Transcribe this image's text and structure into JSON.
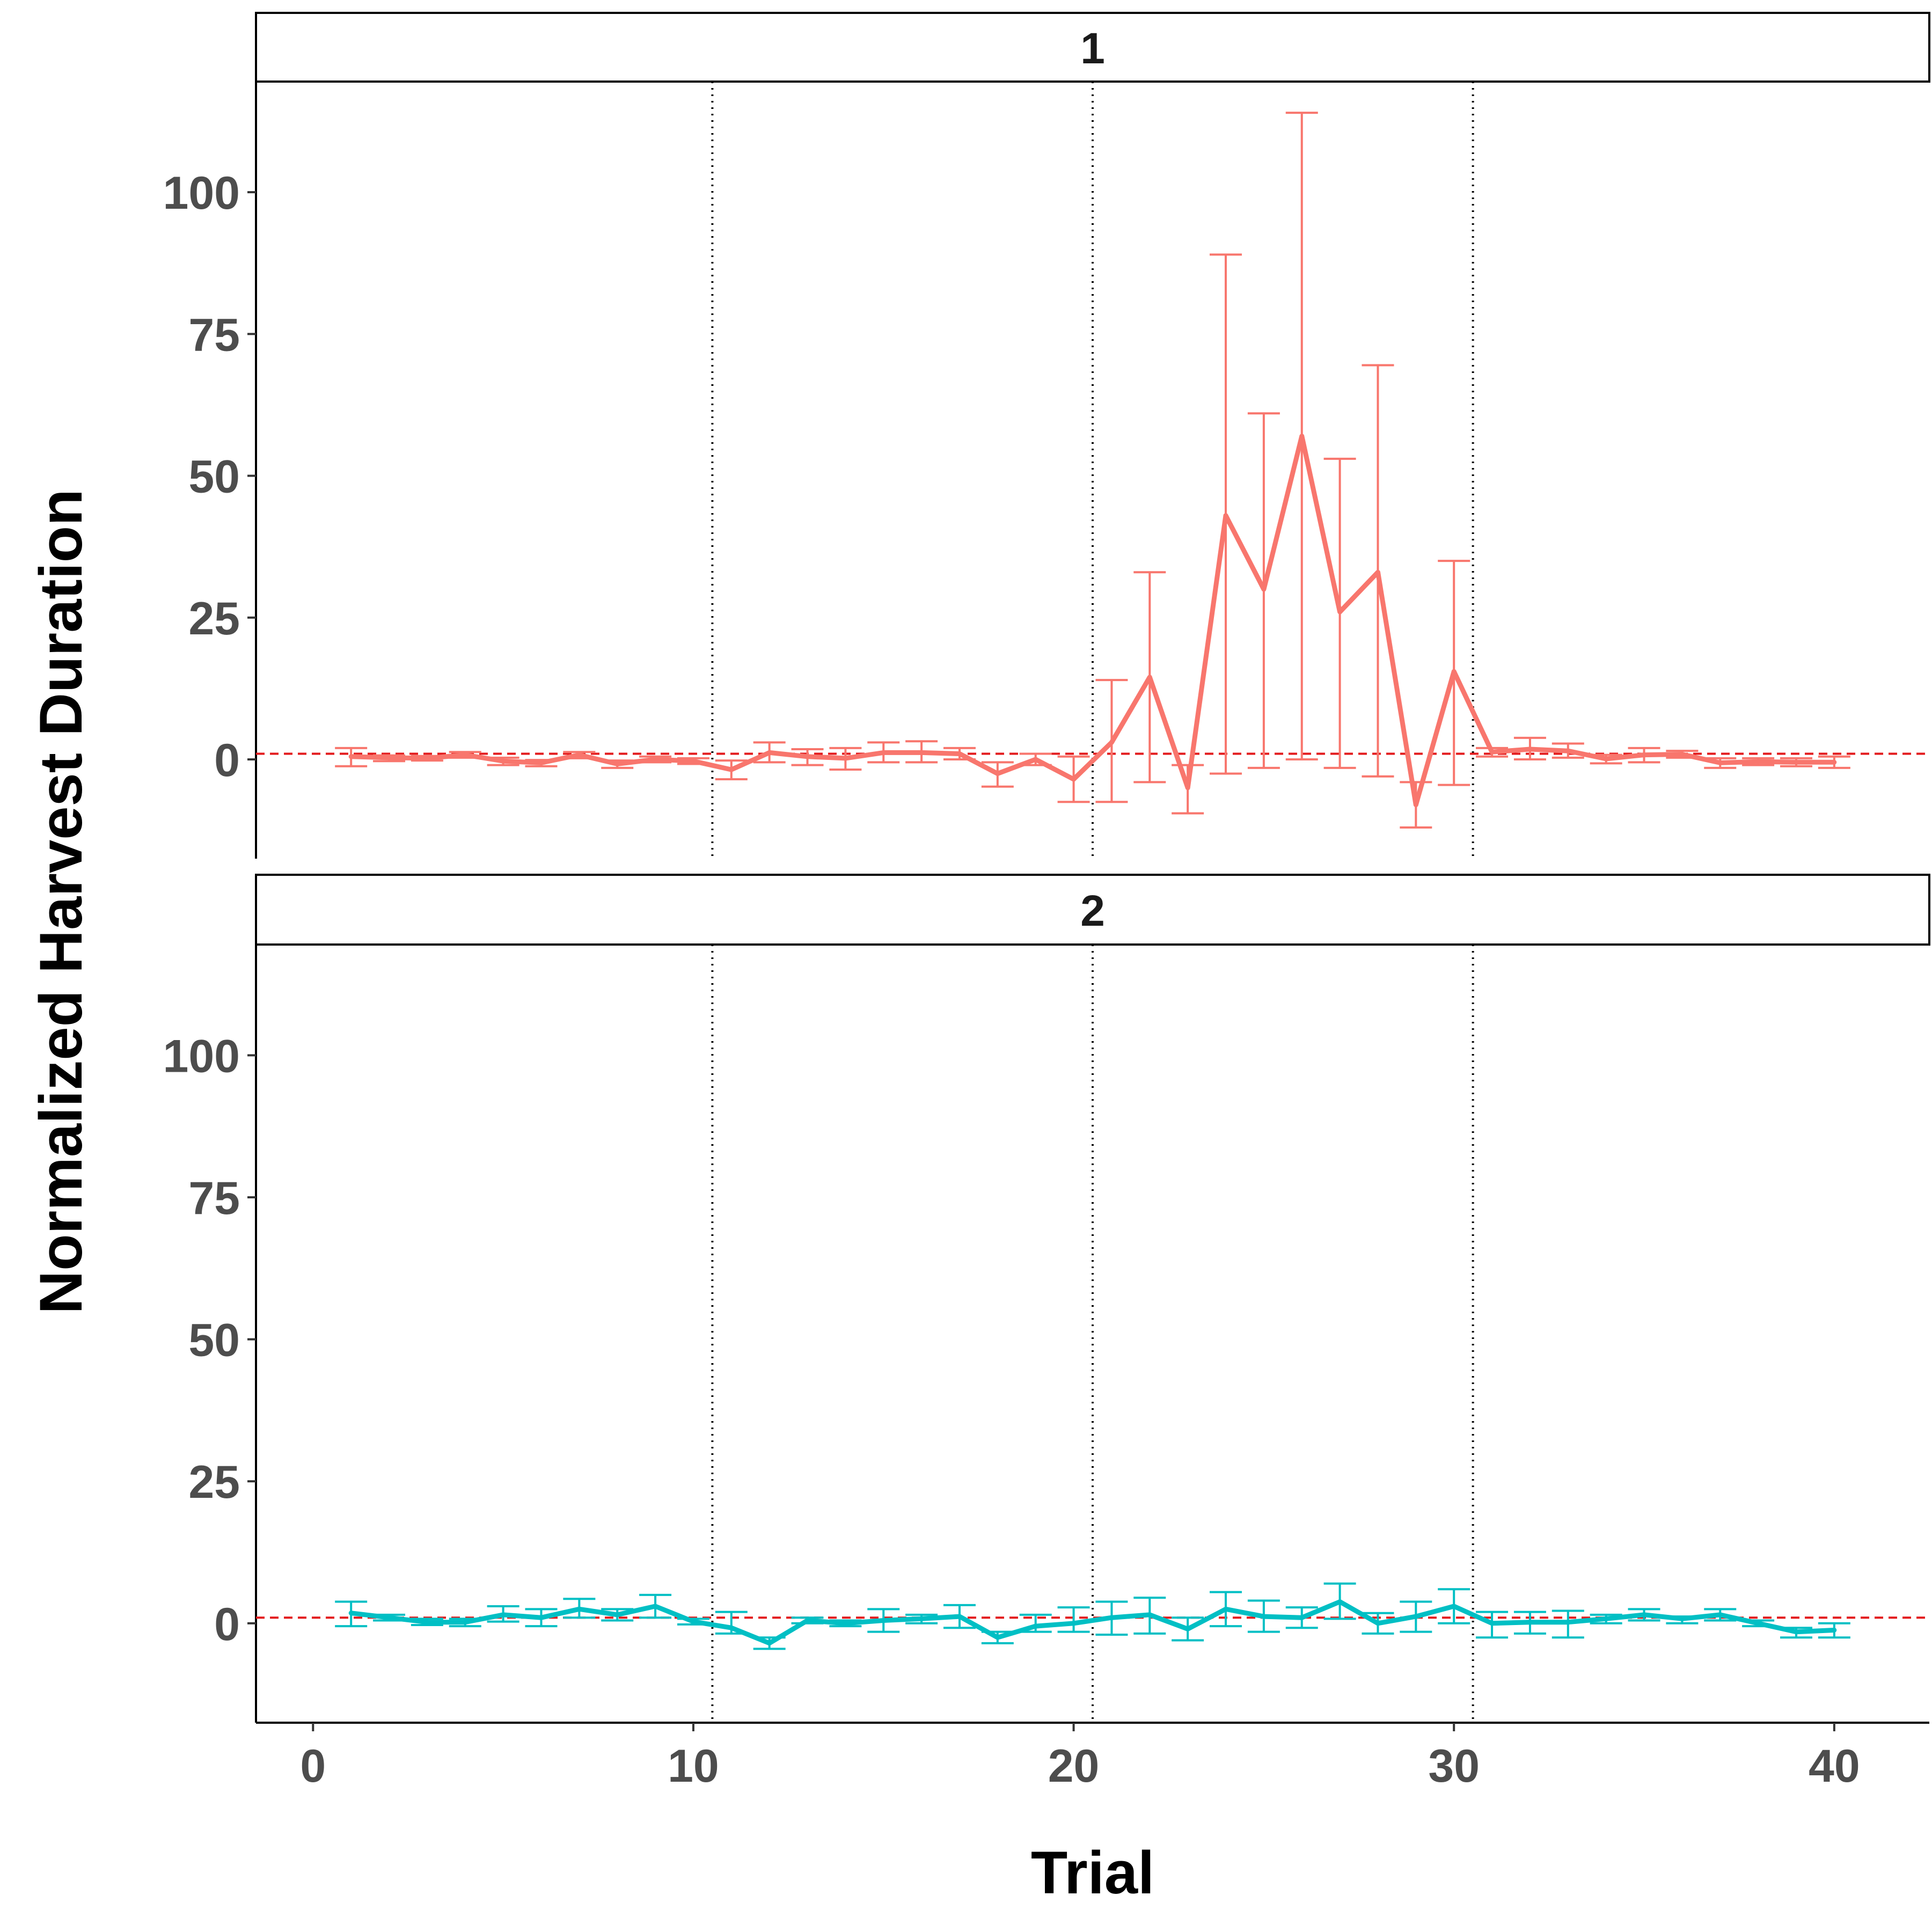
{
  "chart_data": {
    "type": "line",
    "xlabel": "Trial",
    "ylabel": "Normalized Harvest Duration",
    "xlim": [
      -1.5,
      42.5
    ],
    "ylim": [
      -17.5,
      119.5
    ],
    "x_ticks": [
      0,
      10,
      20,
      30,
      40
    ],
    "y_ticks": [
      0,
      25,
      50,
      75,
      100
    ],
    "reference_line": {
      "y": 1,
      "style": "dashed",
      "color": "#e31a1c"
    },
    "phase_lines": {
      "x": [
        10.5,
        20.5,
        30.5
      ],
      "style": "dotted",
      "color": "#000000"
    },
    "grid": false,
    "legend": "none",
    "panels": [
      {
        "label": "1",
        "color": "#f8766d",
        "x": [
          1,
          2,
          3,
          4,
          5,
          6,
          7,
          8,
          9,
          10,
          11,
          12,
          13,
          14,
          15,
          16,
          17,
          18,
          19,
          20,
          21,
          22,
          23,
          24,
          25,
          26,
          27,
          28,
          29,
          30,
          31,
          32,
          33,
          34,
          35,
          36,
          37,
          38,
          39,
          40
        ],
        "y": [
          0.5,
          0.3,
          0.2,
          0.8,
          -0.3,
          -0.6,
          0.8,
          -0.8,
          0,
          -0.3,
          -1.8,
          1.2,
          0.5,
          0.2,
          1.2,
          1.2,
          1,
          -2.5,
          0,
          -3.5,
          3,
          14.5,
          -5,
          43,
          30,
          57,
          26,
          33,
          -8,
          15.5,
          1.3,
          1.8,
          1.5,
          0.1,
          0.8,
          0.9,
          -0.6,
          -0.4,
          -0.5,
          -0.5
        ],
        "lower": [
          -1.2,
          -0.3,
          -0.2,
          0.3,
          -1,
          -1.2,
          0.2,
          -1.5,
          -0.5,
          -0.8,
          -3.5,
          -0.5,
          -1,
          -1.8,
          -0.5,
          -0.5,
          0,
          -4.8,
          -1,
          -7.5,
          -7.5,
          -4,
          -9.5,
          -2.5,
          -1.5,
          0,
          -1.5,
          -3,
          -12,
          -4.5,
          0.5,
          0,
          0.3,
          -0.7,
          -0.5,
          0.3,
          -1.5,
          -1,
          -1.2,
          -1.5
        ],
        "upper": [
          2,
          0.7,
          0.6,
          1.3,
          0.3,
          -0.1,
          1.3,
          -0.2,
          0.5,
          0.2,
          -0.2,
          3,
          1.8,
          2,
          3,
          3.2,
          2,
          -0.5,
          1,
          0.5,
          14,
          33,
          -1,
          89,
          61,
          114,
          53,
          69.5,
          -4,
          35,
          2,
          3.8,
          2.8,
          0.8,
          2,
          1.5,
          0.2,
          0.2,
          0.2,
          0.5
        ]
      },
      {
        "label": "2",
        "color": "#00bfc4",
        "x": [
          1,
          2,
          3,
          4,
          5,
          6,
          7,
          8,
          9,
          10,
          11,
          12,
          13,
          14,
          15,
          16,
          17,
          18,
          19,
          20,
          21,
          22,
          23,
          24,
          25,
          26,
          27,
          28,
          29,
          30,
          31,
          32,
          33,
          34,
          35,
          36,
          37,
          38,
          39,
          40
        ],
        "y": [
          1.8,
          1,
          0.2,
          0.2,
          1.5,
          1,
          2.5,
          1.5,
          3,
          0.3,
          -0.8,
          -3.5,
          0.5,
          0,
          0.5,
          0.8,
          1.2,
          -2.5,
          -0.5,
          0,
          1,
          1.5,
          -1,
          2.5,
          1.2,
          1,
          3.8,
          0,
          1.2,
          3,
          0,
          0.2,
          0.2,
          0.8,
          1.5,
          0.8,
          1.5,
          0,
          -1.5,
          -1.2
        ],
        "lower": [
          -0.5,
          0.5,
          -0.3,
          -0.5,
          0.3,
          -0.5,
          1,
          0.5,
          1,
          -0.2,
          -1.8,
          -4.5,
          0,
          -0.5,
          -1.5,
          0,
          -0.8,
          -3.5,
          -1.5,
          -1.5,
          -2,
          -1.8,
          -3,
          -0.5,
          -1.5,
          -0.8,
          0.8,
          -1.8,
          -1.5,
          0,
          -2.5,
          -1.8,
          -2.5,
          0,
          0.5,
          0,
          0.5,
          -0.5,
          -2.5,
          -2.5
        ],
        "upper": [
          3.8,
          1.5,
          0.8,
          0.8,
          3,
          2.5,
          4.3,
          2.5,
          5,
          0.8,
          2,
          -2.5,
          1,
          0.5,
          2.5,
          1.5,
          3.2,
          -1.5,
          1.5,
          2.8,
          3.8,
          4.5,
          1,
          5.5,
          4,
          2.8,
          7,
          1.8,
          3.8,
          6,
          2,
          2,
          2.2,
          1.5,
          2.5,
          1.2,
          2.5,
          0.5,
          -0.8,
          0
        ]
      }
    ]
  }
}
